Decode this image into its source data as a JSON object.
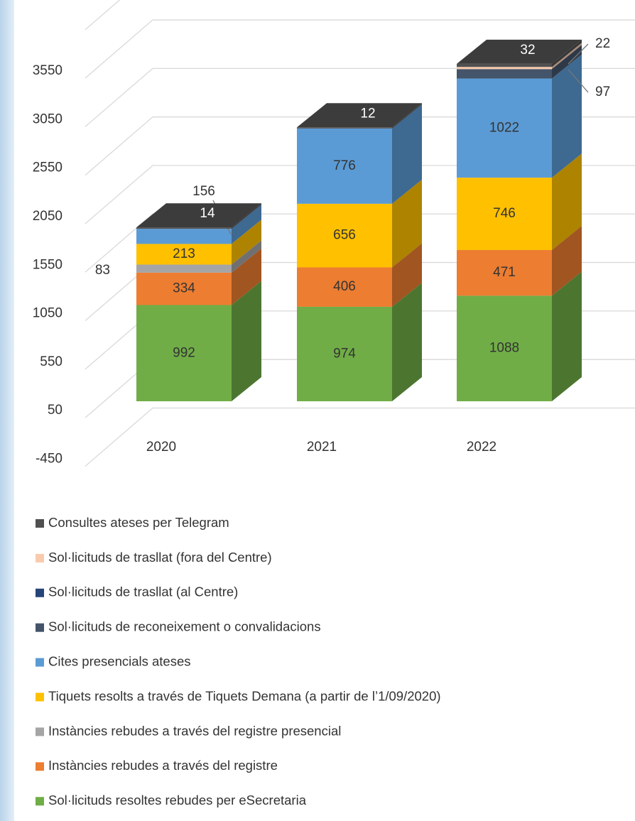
{
  "chart_data": {
    "type": "bar3d_stacked",
    "categories": [
      "2020",
      "2021",
      "2022"
    ],
    "series": [
      {
        "name": "Sol·licituds resoltes rebudes per eSecretaria",
        "color": "#70ad47",
        "values": [
          992,
          974,
          1088
        ]
      },
      {
        "name": "Instàncies rebudes a través del registre",
        "color": "#ed7d31",
        "values": [
          334,
          406,
          471
        ]
      },
      {
        "name": "Instàncies rebudes a través del registre presencial",
        "color": "#a5a5a5",
        "values": [
          83,
          null,
          null
        ]
      },
      {
        "name": "Tiquets resolts a través de Tiquets Demana (a partir de l’1/09/2020)",
        "color": "#ffc000",
        "values": [
          213,
          656,
          746
        ]
      },
      {
        "name": "Cites presencials ateses",
        "color": "#5b9bd5",
        "values": [
          156,
          776,
          1022
        ]
      },
      {
        "name": "Sol·licituds de reconeixement o convalidacions",
        "color": "#44546a",
        "values": [
          null,
          null,
          97
        ]
      },
      {
        "name": "Sol·licituds de trasllat (al Centre)",
        "color": "#264478",
        "values": [
          null,
          null,
          null
        ]
      },
      {
        "name": "Sol·licituds de trasllat (fora del Centre)",
        "color": "#f8cbad",
        "values": [
          null,
          null,
          22
        ]
      },
      {
        "name": "Consultes ateses per Telegram",
        "color": "#505050",
        "values": [
          14,
          12,
          32
        ]
      }
    ],
    "ylim": [
      -450,
      4050
    ],
    "yticks": [
      -450,
      50,
      550,
      1050,
      1550,
      2050,
      2550,
      3050,
      3550
    ],
    "grid": true,
    "legend": "bottom"
  }
}
